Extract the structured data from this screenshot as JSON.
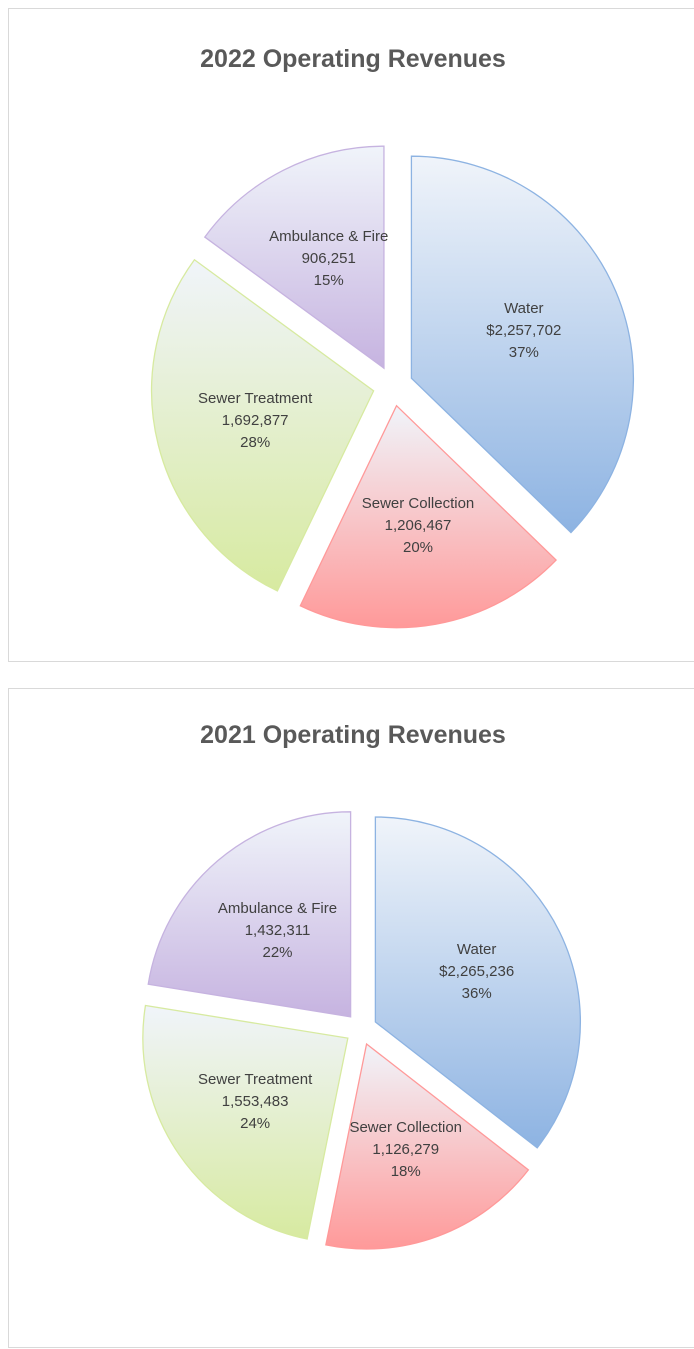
{
  "chart_data": [
    {
      "type": "pie",
      "title": "2022 Operating Revenues",
      "categories": [
        "Water",
        "Sewer Collection",
        "Sewer Treatment",
        "Ambulance & Fire"
      ],
      "values": [
        2257702,
        1206467,
        1692877,
        906251
      ],
      "value_labels": [
        "$2,257,702",
        "1,206,467",
        "1,692,877",
        "906,251"
      ],
      "percent_labels": [
        "37%",
        "20%",
        "28%",
        "15%"
      ],
      "colors": [
        "#8db3e2",
        "#ff9999",
        "#d7eaa0",
        "#c6b3e0"
      ]
    },
    {
      "type": "pie",
      "title": "2021 Operating Revenues",
      "categories": [
        "Water",
        "Sewer Collection",
        "Sewer Treatment",
        "Ambulance & Fire"
      ],
      "values": [
        2265236,
        1126279,
        1553483,
        1432311
      ],
      "value_labels": [
        "$2,265,236",
        "1,126,279",
        "1,553,483",
        "1,432,311"
      ],
      "percent_labels": [
        "36%",
        "18%",
        "24%",
        "22%"
      ],
      "colors": [
        "#8db3e2",
        "#ff9999",
        "#d7eaa0",
        "#c6b3e0"
      ]
    }
  ]
}
